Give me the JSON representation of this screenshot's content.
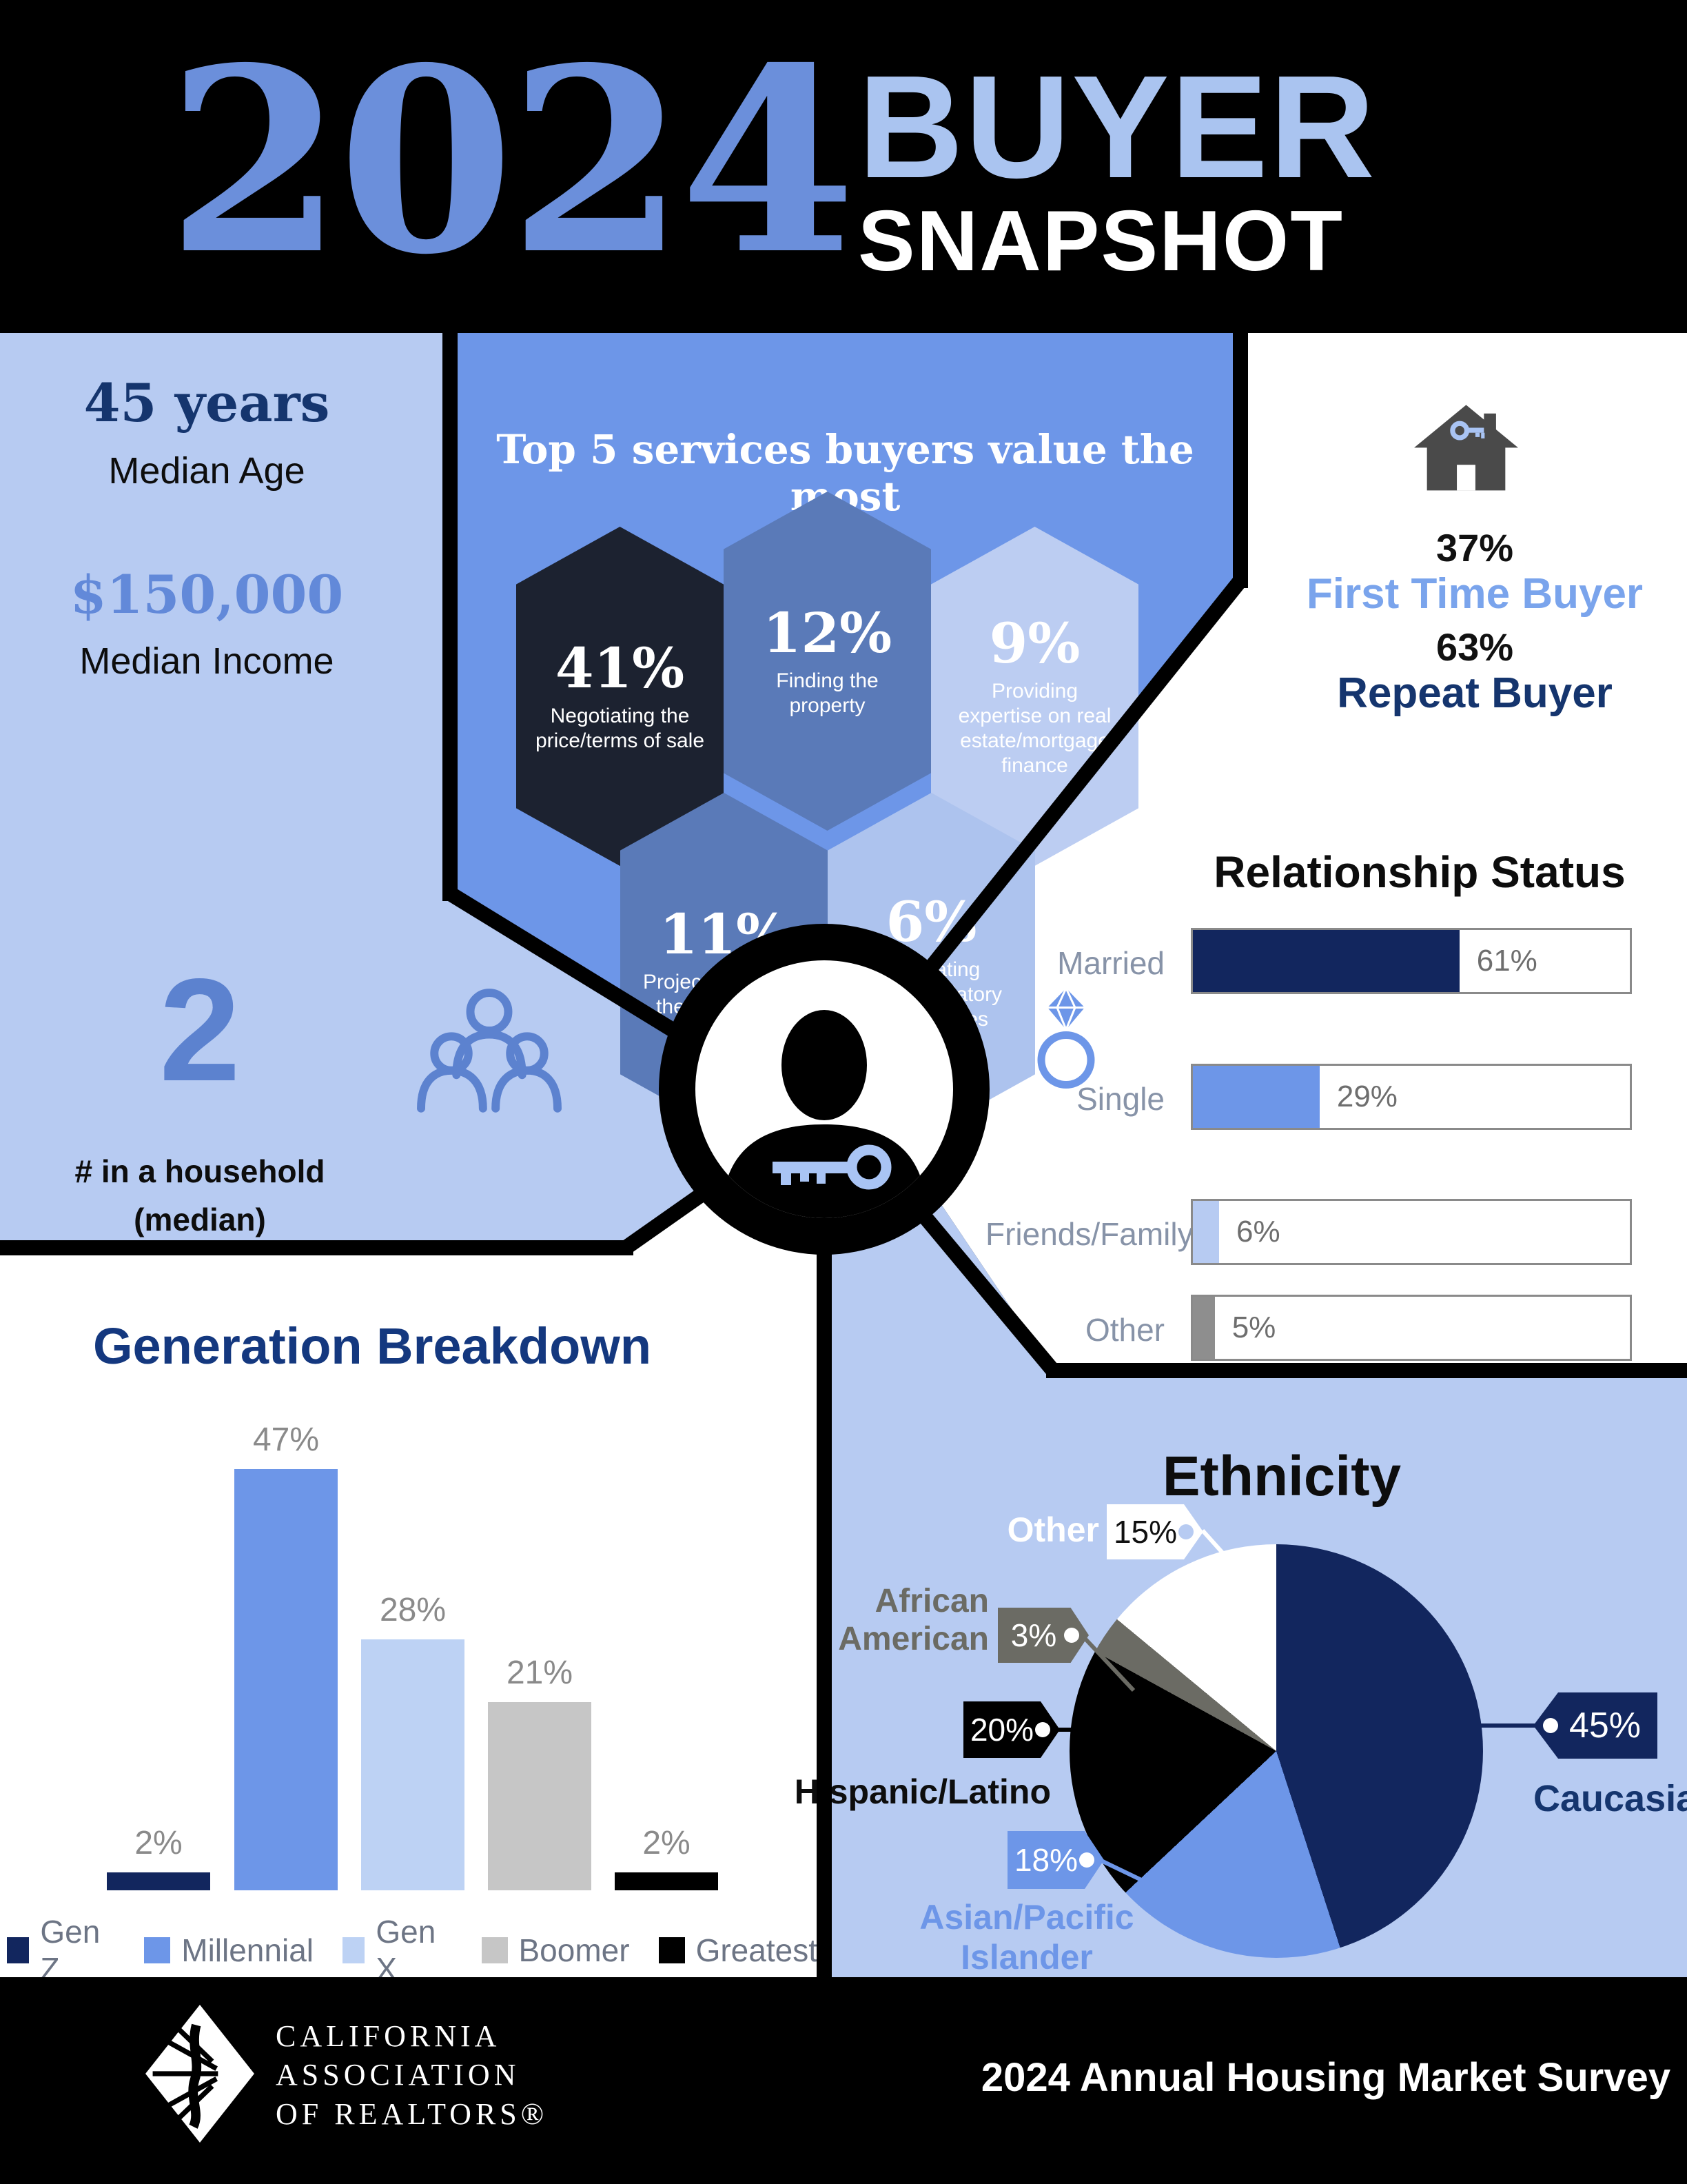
{
  "palette": {
    "black": "#000000",
    "navy": "#12265e",
    "navy_text": "#15356e",
    "blue": "#6d96e8",
    "slate_blue": "#5a7ab8",
    "light_blue_panel": "#b7cbf2",
    "light_blue": "#bdd2f4",
    "pale_blue": "#adc3ee",
    "hex_light": "#bccdf2",
    "hex_dark": "#1c2230",
    "year_blue": "#6b8fdb",
    "buyer_blue": "#aac4f0",
    "accent_blue": "#5c82cf",
    "first_time_blue": "#7aa4ec",
    "income_blue": "#6289d9",
    "boomer_gray": "#c6c6c6",
    "other_gray": "#8e8e8e",
    "aa_gray": "#6b6b64",
    "house_gray": "#4a4a4a",
    "key_blue": "#a9c4f4",
    "white": "#ffffff"
  },
  "header": {
    "year": "2024",
    "line1": "BUYER",
    "line2": "SNAPSHOT"
  },
  "left_stats": {
    "median_age_value": "45 years",
    "median_age_label": "Median Age",
    "median_income_value": "$150,000",
    "median_income_label": "Median Income",
    "household_value": "2",
    "household_label": "# in a household",
    "household_sublabel": "(median)"
  },
  "services": {
    "title": "Top 5 services buyers value the most",
    "items": [
      {
        "pct": "41%",
        "label": "Negotiating the price/terms of sale",
        "color": "#1c2230"
      },
      {
        "pct": "12%",
        "label": "Finding the property",
        "color": "#5a7ab8"
      },
      {
        "pct": "9%",
        "label": "Providing expertise on real estate/mortgage finance",
        "color": "#bccdf2"
      },
      {
        "pct": "11%",
        "label": "Project-managing the transaction",
        "color": "#5a7ab8"
      },
      {
        "pct": "6%",
        "label": "Navigating legal/regulatory complexities",
        "color": "#adc3ee"
      }
    ]
  },
  "buyer_type": {
    "first_pct": "37%",
    "first_label": "First Time Buyer",
    "repeat_pct": "63%",
    "repeat_label": "Repeat Buyer"
  },
  "relationship": {
    "title": "Relationship Status",
    "bars": [
      {
        "label": "Married",
        "pct_label": "61%",
        "value": 61,
        "color": "#12265e"
      },
      {
        "label": "Single",
        "pct_label": "29%",
        "value": 29,
        "color": "#6d96e8"
      },
      {
        "label": "Friends/Family",
        "pct_label": "6%",
        "value": 6,
        "color": "#b7cbf2"
      },
      {
        "label": "Other",
        "pct_label": "5%",
        "value": 5,
        "color": "#8e8e8e"
      }
    ]
  },
  "generation": {
    "title": "Generation Breakdown",
    "bars": [
      {
        "label": "Gen Z",
        "pct_label": "2%",
        "value": 2,
        "color": "#12265e"
      },
      {
        "label": "Millennial",
        "pct_label": "47%",
        "value": 47,
        "color": "#6d96e8"
      },
      {
        "label": "Gen X",
        "pct_label": "28%",
        "value": 28,
        "color": "#bdd2f4"
      },
      {
        "label": "Boomer",
        "pct_label": "21%",
        "value": 21,
        "color": "#c6c6c6"
      },
      {
        "label": "Greatest",
        "pct_label": "2%",
        "value": 2,
        "color": "#000000"
      }
    ]
  },
  "ethnicity": {
    "title": "Ethnicity",
    "slices": [
      {
        "label": "Caucasian",
        "pct_label": "45%",
        "value": 45,
        "color": "#12265e"
      },
      {
        "label": "Asian/Pacific Islander",
        "pct_label": "18%",
        "value": 18,
        "color": "#6d96e8"
      },
      {
        "label": "Hispanic/Latino",
        "pct_label": "20%",
        "value": 20,
        "color": "#000000"
      },
      {
        "label": "African\nAmerican",
        "pct_label": "3%",
        "value": 3,
        "color": "#6b6b64"
      },
      {
        "label": "Other",
        "pct_label": "15%",
        "value": 15,
        "color": "#ffffff"
      }
    ]
  },
  "footer": {
    "org": "CALIFORNIA\nASSOCIATION\nOF REALTORS®",
    "survey": "2024 Annual Housing Market Survey"
  },
  "chart_data": [
    {
      "type": "bar",
      "title": "Generation Breakdown",
      "categories": [
        "Gen Z",
        "Millennial",
        "Gen X",
        "Boomer",
        "Greatest"
      ],
      "values": [
        2,
        47,
        28,
        21,
        2
      ],
      "unit": "%",
      "ylim": [
        0,
        50
      ],
      "legend_position": "bottom",
      "grid": false
    },
    {
      "type": "bar",
      "title": "Relationship Status",
      "orientation": "horizontal",
      "categories": [
        "Married",
        "Single",
        "Friends/Family",
        "Other"
      ],
      "values": [
        61,
        29,
        6,
        5
      ],
      "unit": "%",
      "xlim": [
        0,
        100
      ],
      "grid": false
    },
    {
      "type": "pie",
      "title": "Ethnicity",
      "labels": [
        "Caucasian",
        "Asian/Pacific Islander",
        "Hispanic/Latino",
        "African American",
        "Other"
      ],
      "values": [
        45,
        18,
        20,
        3,
        15
      ],
      "unit": "%",
      "start_angle_deg": 0,
      "direction": "clockwise"
    },
    {
      "type": "bar",
      "title": "Top 5 services buyers value the most",
      "categories": [
        "Negotiating the price/terms of sale",
        "Finding the property",
        "Providing expertise on real estate/mortgage finance",
        "Project-managing the transaction",
        "Navigating legal/regulatory complexities"
      ],
      "values": [
        41,
        12,
        9,
        11,
        6
      ],
      "unit": "%"
    }
  ]
}
